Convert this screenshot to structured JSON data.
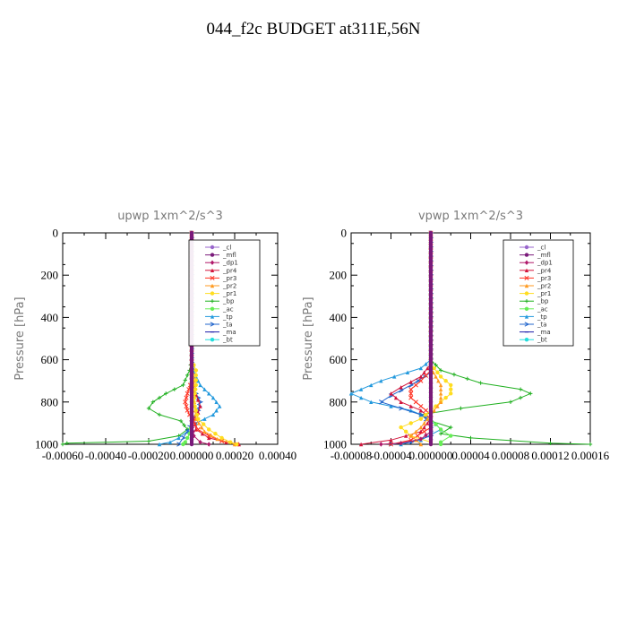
{
  "figure": {
    "title": "044_f2c  BUDGET at311E,56N"
  },
  "legend_entries": [
    {
      "name": "_cl",
      "color": "#9966cc",
      "marker": "circle"
    },
    {
      "name": "_mfl",
      "color": "#7a1a7a",
      "marker": "circle"
    },
    {
      "name": "_dp1",
      "color": "#b0186a",
      "marker": "diamond"
    },
    {
      "name": "_pr4",
      "color": "#d2143c",
      "marker": "tri"
    },
    {
      "name": "_pr3",
      "color": "#ff3020",
      "marker": "x"
    },
    {
      "name": "_pr2",
      "color": "#ff9a20",
      "marker": "tri"
    },
    {
      "name": "_pr1",
      "color": "#ffdd20",
      "marker": "circle"
    },
    {
      "name": "_bp",
      "color": "#20b020",
      "marker": "plus"
    },
    {
      "name": "_ac",
      "color": "#66ee55",
      "marker": "circle"
    },
    {
      "name": "_tp",
      "color": "#2299dd",
      "marker": "tri"
    },
    {
      "name": "_ta",
      "color": "#2266cc",
      "marker": "arrow"
    },
    {
      "name": "_ma",
      "color": "#1a1aaa",
      "marker": "dash"
    },
    {
      "name": "_bt",
      "color": "#22dddd",
      "marker": "circle"
    }
  ],
  "chart_data": [
    {
      "type": "line",
      "title": "upwp   1xm^2/s^3",
      "ylabel": "Pressure [hPa]",
      "xlabel": "",
      "xlim": [
        -0.0006,
        0.0004
      ],
      "ylim": [
        1000,
        0
      ],
      "xticks": [
        -0.0006,
        -0.0004,
        -0.0002,
        0.0,
        0.0002,
        0.0004
      ],
      "xtick_labels": [
        "-0.00060",
        "-0.00040",
        "-0.00020",
        "0.000000",
        "0.00020",
        "0.00040"
      ],
      "yticks": [
        0,
        200,
        400,
        600,
        800,
        1000
      ],
      "ytick_labels": [
        "0",
        "200",
        "400",
        "600",
        "800",
        "1000"
      ],
      "grid": false,
      "legend_position": "top-right",
      "series": [
        {
          "name": "_bp",
          "points": [
            [
              0,
              0
            ],
            [
              0,
              600
            ],
            [
              -1e-05,
              650
            ],
            [
              -4e-05,
              720
            ],
            [
              -0.00012,
              760
            ],
            [
              -0.00018,
              800
            ],
            [
              -0.0002,
              830
            ],
            [
              -0.00015,
              860
            ],
            [
              -5e-05,
              890
            ],
            [
              -2e-05,
              930
            ],
            [
              -6e-05,
              960
            ],
            [
              -0.0002,
              985
            ],
            [
              -0.00058,
              995
            ],
            [
              -0.0006,
              1000
            ]
          ]
        },
        {
          "name": "_tp",
          "points": [
            [
              0,
              0
            ],
            [
              0,
              600
            ],
            [
              1e-05,
              660
            ],
            [
              4e-05,
              720
            ],
            [
              0.0001,
              780
            ],
            [
              0.00013,
              820
            ],
            [
              0.0001,
              860
            ],
            [
              2e-05,
              900
            ],
            [
              -2e-05,
              940
            ],
            [
              -6e-05,
              970
            ],
            [
              -0.0001,
              990
            ],
            [
              -0.00015,
              1000
            ]
          ]
        },
        {
          "name": "_ta",
          "points": [
            [
              0,
              0
            ],
            [
              0,
              700
            ],
            [
              2e-05,
              760
            ],
            [
              4e-05,
              800
            ],
            [
              3e-05,
              840
            ],
            [
              1e-05,
              870
            ],
            [
              0,
              900
            ],
            [
              -2e-05,
              940
            ],
            [
              -4e-05,
              970
            ],
            [
              -6e-05,
              1000
            ]
          ]
        },
        {
          "name": "_pr4",
          "points": [
            [
              0,
              0
            ],
            [
              0,
              680
            ],
            [
              1e-05,
              740
            ],
            [
              3e-05,
              790
            ],
            [
              4e-05,
              820
            ],
            [
              3e-05,
              850
            ],
            [
              1e-05,
              880
            ],
            [
              2e-05,
              930
            ],
            [
              8e-05,
              970
            ],
            [
              0.00016,
              990
            ],
            [
              0.00022,
              1000
            ]
          ]
        },
        {
          "name": "_pr3",
          "points": [
            [
              0,
              0
            ],
            [
              0,
              700
            ],
            [
              -2e-05,
              760
            ],
            [
              -3e-05,
              800
            ],
            [
              -2e-05,
              840
            ],
            [
              0,
              880
            ],
            [
              3e-05,
              930
            ],
            [
              8e-05,
              960
            ],
            [
              0.00014,
              985
            ],
            [
              0.00021,
              1000
            ]
          ]
        },
        {
          "name": "_pr2",
          "points": [
            [
              0,
              0
            ],
            [
              0,
              620
            ],
            [
              1e-05,
              700
            ],
            [
              1e-05,
              780
            ],
            [
              2e-05,
              880
            ],
            [
              6e-05,
              940
            ],
            [
              0.00012,
              975
            ],
            [
              0.0002,
              1000
            ]
          ]
        },
        {
          "name": "_pr1",
          "points": [
            [
              0,
              0
            ],
            [
              0,
              600
            ],
            [
              2e-05,
              650
            ],
            [
              2e-05,
              720
            ],
            [
              1e-05,
              800
            ],
            [
              3e-05,
              880
            ],
            [
              8e-05,
              930
            ],
            [
              0.00014,
              970
            ],
            [
              0.00018,
              990
            ],
            [
              0.00021,
              1000
            ]
          ]
        },
        {
          "name": "_dp1",
          "points": [
            [
              0,
              0
            ],
            [
              0,
              900
            ],
            [
              1e-05,
              960
            ],
            [
              4e-05,
              990
            ],
            [
              8e-05,
              1000
            ]
          ]
        },
        {
          "name": "_ac",
          "points": [
            [
              0,
              0
            ],
            [
              0,
              900
            ],
            [
              -1e-05,
              950
            ],
            [
              -3e-05,
              990
            ],
            [
              -4e-05,
              1000
            ]
          ]
        },
        {
          "name": "_cl",
          "points": [
            [
              0,
              0
            ],
            [
              0,
              1000
            ]
          ]
        },
        {
          "name": "_mfl",
          "points": [
            [
              0,
              0
            ],
            [
              0,
              1000
            ]
          ]
        }
      ]
    },
    {
      "type": "line",
      "title": "vpwp   1xm^2/s^3",
      "ylabel": "Pressure [hPa]",
      "xlabel": "",
      "xlim": [
        -8e-05,
        0.00016
      ],
      "ylim": [
        1000,
        0
      ],
      "xticks": [
        -8e-05,
        -4e-05,
        0.0,
        4e-05,
        8e-05,
        0.00012,
        0.00016
      ],
      "xtick_labels": [
        "-0.00008",
        "-0.00004",
        "0.000000",
        "0.00004",
        "0.00008",
        "0.00012",
        "0.00016"
      ],
      "yticks": [
        0,
        200,
        400,
        600,
        800,
        1000
      ],
      "ytick_labels": [
        "0",
        "200",
        "400",
        "600",
        "800",
        "1000"
      ],
      "grid": false,
      "legend_position": "top-right",
      "series": [
        {
          "name": "_bp",
          "points": [
            [
              0,
              0
            ],
            [
              0,
              600
            ],
            [
              1e-05,
              650
            ],
            [
              5e-05,
              710
            ],
            [
              9e-05,
              740
            ],
            [
              0.0001,
              760
            ],
            [
              8e-05,
              800
            ],
            [
              3e-05,
              830
            ],
            [
              -1e-05,
              860
            ],
            [
              0,
              890
            ],
            [
              2e-05,
              920
            ],
            [
              1e-05,
              950
            ],
            [
              4e-05,
              970
            ],
            [
              0.00012,
              995
            ],
            [
              0.00016,
              1000
            ]
          ]
        },
        {
          "name": "_tp",
          "points": [
            [
              0,
              0
            ],
            [
              0,
              600
            ],
            [
              -1e-05,
              640
            ],
            [
              -5e-05,
              700
            ],
            [
              -8e-05,
              760
            ],
            [
              -6e-05,
              800
            ],
            [
              -2e-05,
              840
            ],
            [
              0,
              880
            ],
            [
              1e-05,
              930
            ],
            [
              -1e-05,
              980
            ],
            [
              -3e-05,
              1000
            ]
          ]
        },
        {
          "name": "_ta",
          "points": [
            [
              0,
              0
            ],
            [
              0,
              660
            ],
            [
              -2e-05,
              720
            ],
            [
              -4e-05,
              770
            ],
            [
              -5e-05,
              800
            ],
            [
              -3e-05,
              830
            ],
            [
              -1e-05,
              860
            ],
            [
              0,
              900
            ],
            [
              0,
              960
            ],
            [
              -2e-05,
              990
            ],
            [
              -4e-05,
              1000
            ]
          ]
        },
        {
          "name": "_pr4",
          "points": [
            [
              0,
              0
            ],
            [
              0,
              620
            ],
            [
              -1e-05,
              680
            ],
            [
              -3e-05,
              730
            ],
            [
              -4e-05,
              760
            ],
            [
              -3e-05,
              800
            ],
            [
              -1e-05,
              840
            ],
            [
              0,
              880
            ],
            [
              -1e-05,
              940
            ],
            [
              -4e-05,
              980
            ],
            [
              -7e-05,
              1000
            ]
          ]
        },
        {
          "name": "_pr3",
          "points": [
            [
              0,
              0
            ],
            [
              0,
              650
            ],
            [
              -1e-05,
              700
            ],
            [
              -2e-05,
              740
            ],
            [
              -2e-05,
              780
            ],
            [
              -1e-05,
              820
            ],
            [
              0,
              860
            ],
            [
              0,
              920
            ],
            [
              -2e-05,
              980
            ],
            [
              -4e-05,
              1000
            ]
          ]
        },
        {
          "name": "_pr1",
          "points": [
            [
              0,
              0
            ],
            [
              0,
              620
            ],
            [
              1e-05,
              680
            ],
            [
              2e-05,
              720
            ],
            [
              2e-05,
              760
            ],
            [
              1e-05,
              800
            ],
            [
              0,
              840
            ],
            [
              -1e-05,
              880
            ],
            [
              -3e-05,
              920
            ],
            [
              -2e-05,
              960
            ],
            [
              0,
              990
            ],
            [
              0,
              1000
            ]
          ]
        },
        {
          "name": "_pr2",
          "points": [
            [
              0,
              0
            ],
            [
              0,
              640
            ],
            [
              1e-05,
              720
            ],
            [
              1e-05,
              800
            ],
            [
              0,
              860
            ],
            [
              -1e-05,
              920
            ],
            [
              -2e-05,
              960
            ],
            [
              -1e-05,
              1000
            ]
          ]
        },
        {
          "name": "_dp1",
          "points": [
            [
              0,
              0
            ],
            [
              0,
              940
            ],
            [
              -1e-05,
              975
            ],
            [
              -3e-05,
              995
            ],
            [
              -5e-05,
              1000
            ]
          ]
        },
        {
          "name": "_ac",
          "points": [
            [
              0,
              0
            ],
            [
              0,
              880
            ],
            [
              1e-05,
              930
            ],
            [
              2e-05,
              960
            ],
            [
              1e-05,
              990
            ],
            [
              1e-05,
              1000
            ]
          ]
        },
        {
          "name": "_cl",
          "points": [
            [
              0,
              0
            ],
            [
              0,
              1000
            ]
          ]
        },
        {
          "name": "_mfl",
          "points": [
            [
              0,
              0
            ],
            [
              0,
              1000
            ]
          ]
        }
      ]
    }
  ]
}
